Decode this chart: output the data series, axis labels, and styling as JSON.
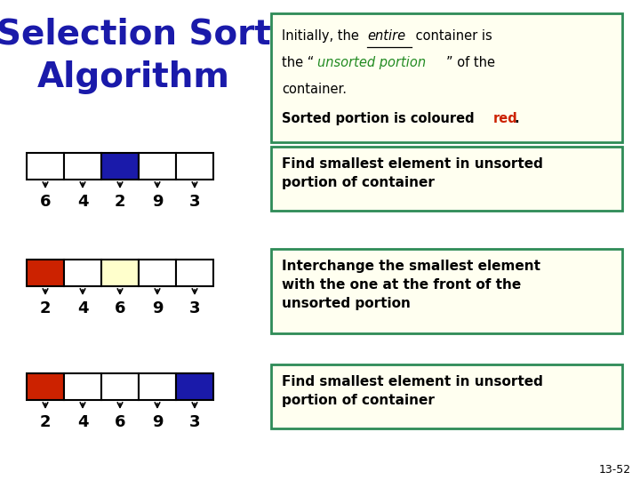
{
  "title_line1": "Selection Sort",
  "title_line2": "Algorithm",
  "title_color": "#1a1aaa",
  "title_fontsize": 28,
  "bg_color": "#ffffff",
  "top_box": {
    "border_color": "#2e8b57",
    "bg_color": "#fffff0"
  },
  "row1": {
    "values": [
      6,
      4,
      2,
      9,
      3
    ],
    "colors": [
      "white",
      "white",
      "#1a1aaa",
      "white",
      "white"
    ],
    "label": "Find smallest element in unsorted\nportion of container"
  },
  "row2": {
    "values": [
      2,
      4,
      6,
      9,
      3
    ],
    "colors": [
      "#cc2200",
      "white",
      "#ffffcc",
      "white",
      "white"
    ],
    "label": "Interchange the smallest element\nwith the one at the front of the\nunsorted portion"
  },
  "row3": {
    "values": [
      2,
      4,
      6,
      9,
      3
    ],
    "colors": [
      "#cc2200",
      "white",
      "white",
      "white",
      "#1a1aaa"
    ],
    "label": "Find smallest element in unsorted\nportion of container"
  },
  "box_border_color": "#2e8b57",
  "box_bg_color": "#fffff0",
  "label_fontsize": 11,
  "page_number": "13-52"
}
